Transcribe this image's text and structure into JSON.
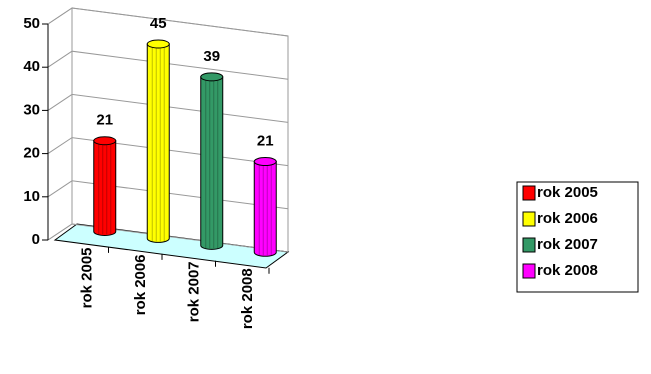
{
  "chart_data": {
    "type": "bar3d",
    "categories": [
      "rok 2005",
      "rok 2006",
      "rok 2007",
      "rok 2008"
    ],
    "values": [
      21,
      45,
      39,
      21
    ],
    "colors": [
      "#ff0000",
      "#ffff00",
      "#339966",
      "#ff00ff"
    ],
    "ylim": [
      0,
      50
    ],
    "yticks": [
      0,
      10,
      20,
      30,
      40,
      50
    ],
    "grid": true,
    "legend": "right",
    "data_labels": true
  }
}
